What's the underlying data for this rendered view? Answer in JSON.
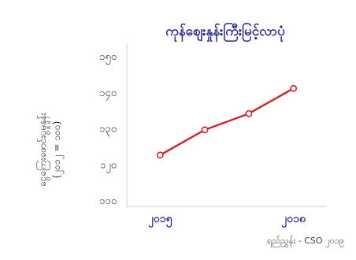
{
  "chart_data": {
    "type": "line",
    "title": "ကုန်စျေးနှုန်းကြီးမြင့်လာပုံ",
    "ylabel_line1": "ငွေကြေးဖောင်းပွမှုနှုန်း",
    "ylabel_line2": "(၂၀၁၂ = ၁၀၀)",
    "yticks": [
      "၁၁၀",
      "၁၂၀",
      "၁၃၀",
      "၁၄၀",
      "၁၅၀"
    ],
    "ylim": [
      110,
      150
    ],
    "x_range": [
      2015.0,
      2018.0
    ],
    "xtick_values": [
      2015.5,
      2017.5
    ],
    "xtick_labels": [
      "၂၀၁၅",
      "၂၀၁၈"
    ],
    "x": [
      2015.5,
      2016.17,
      2016.83,
      2017.5
    ],
    "values": [
      122.5,
      129.5,
      134,
      141
    ],
    "colors": {
      "line": "#cc2229",
      "title": "#2e2a8c"
    },
    "grid": false,
    "legend": "none"
  },
  "source": "ရည်ညွှန်း - CSO ၂၀၁၉"
}
